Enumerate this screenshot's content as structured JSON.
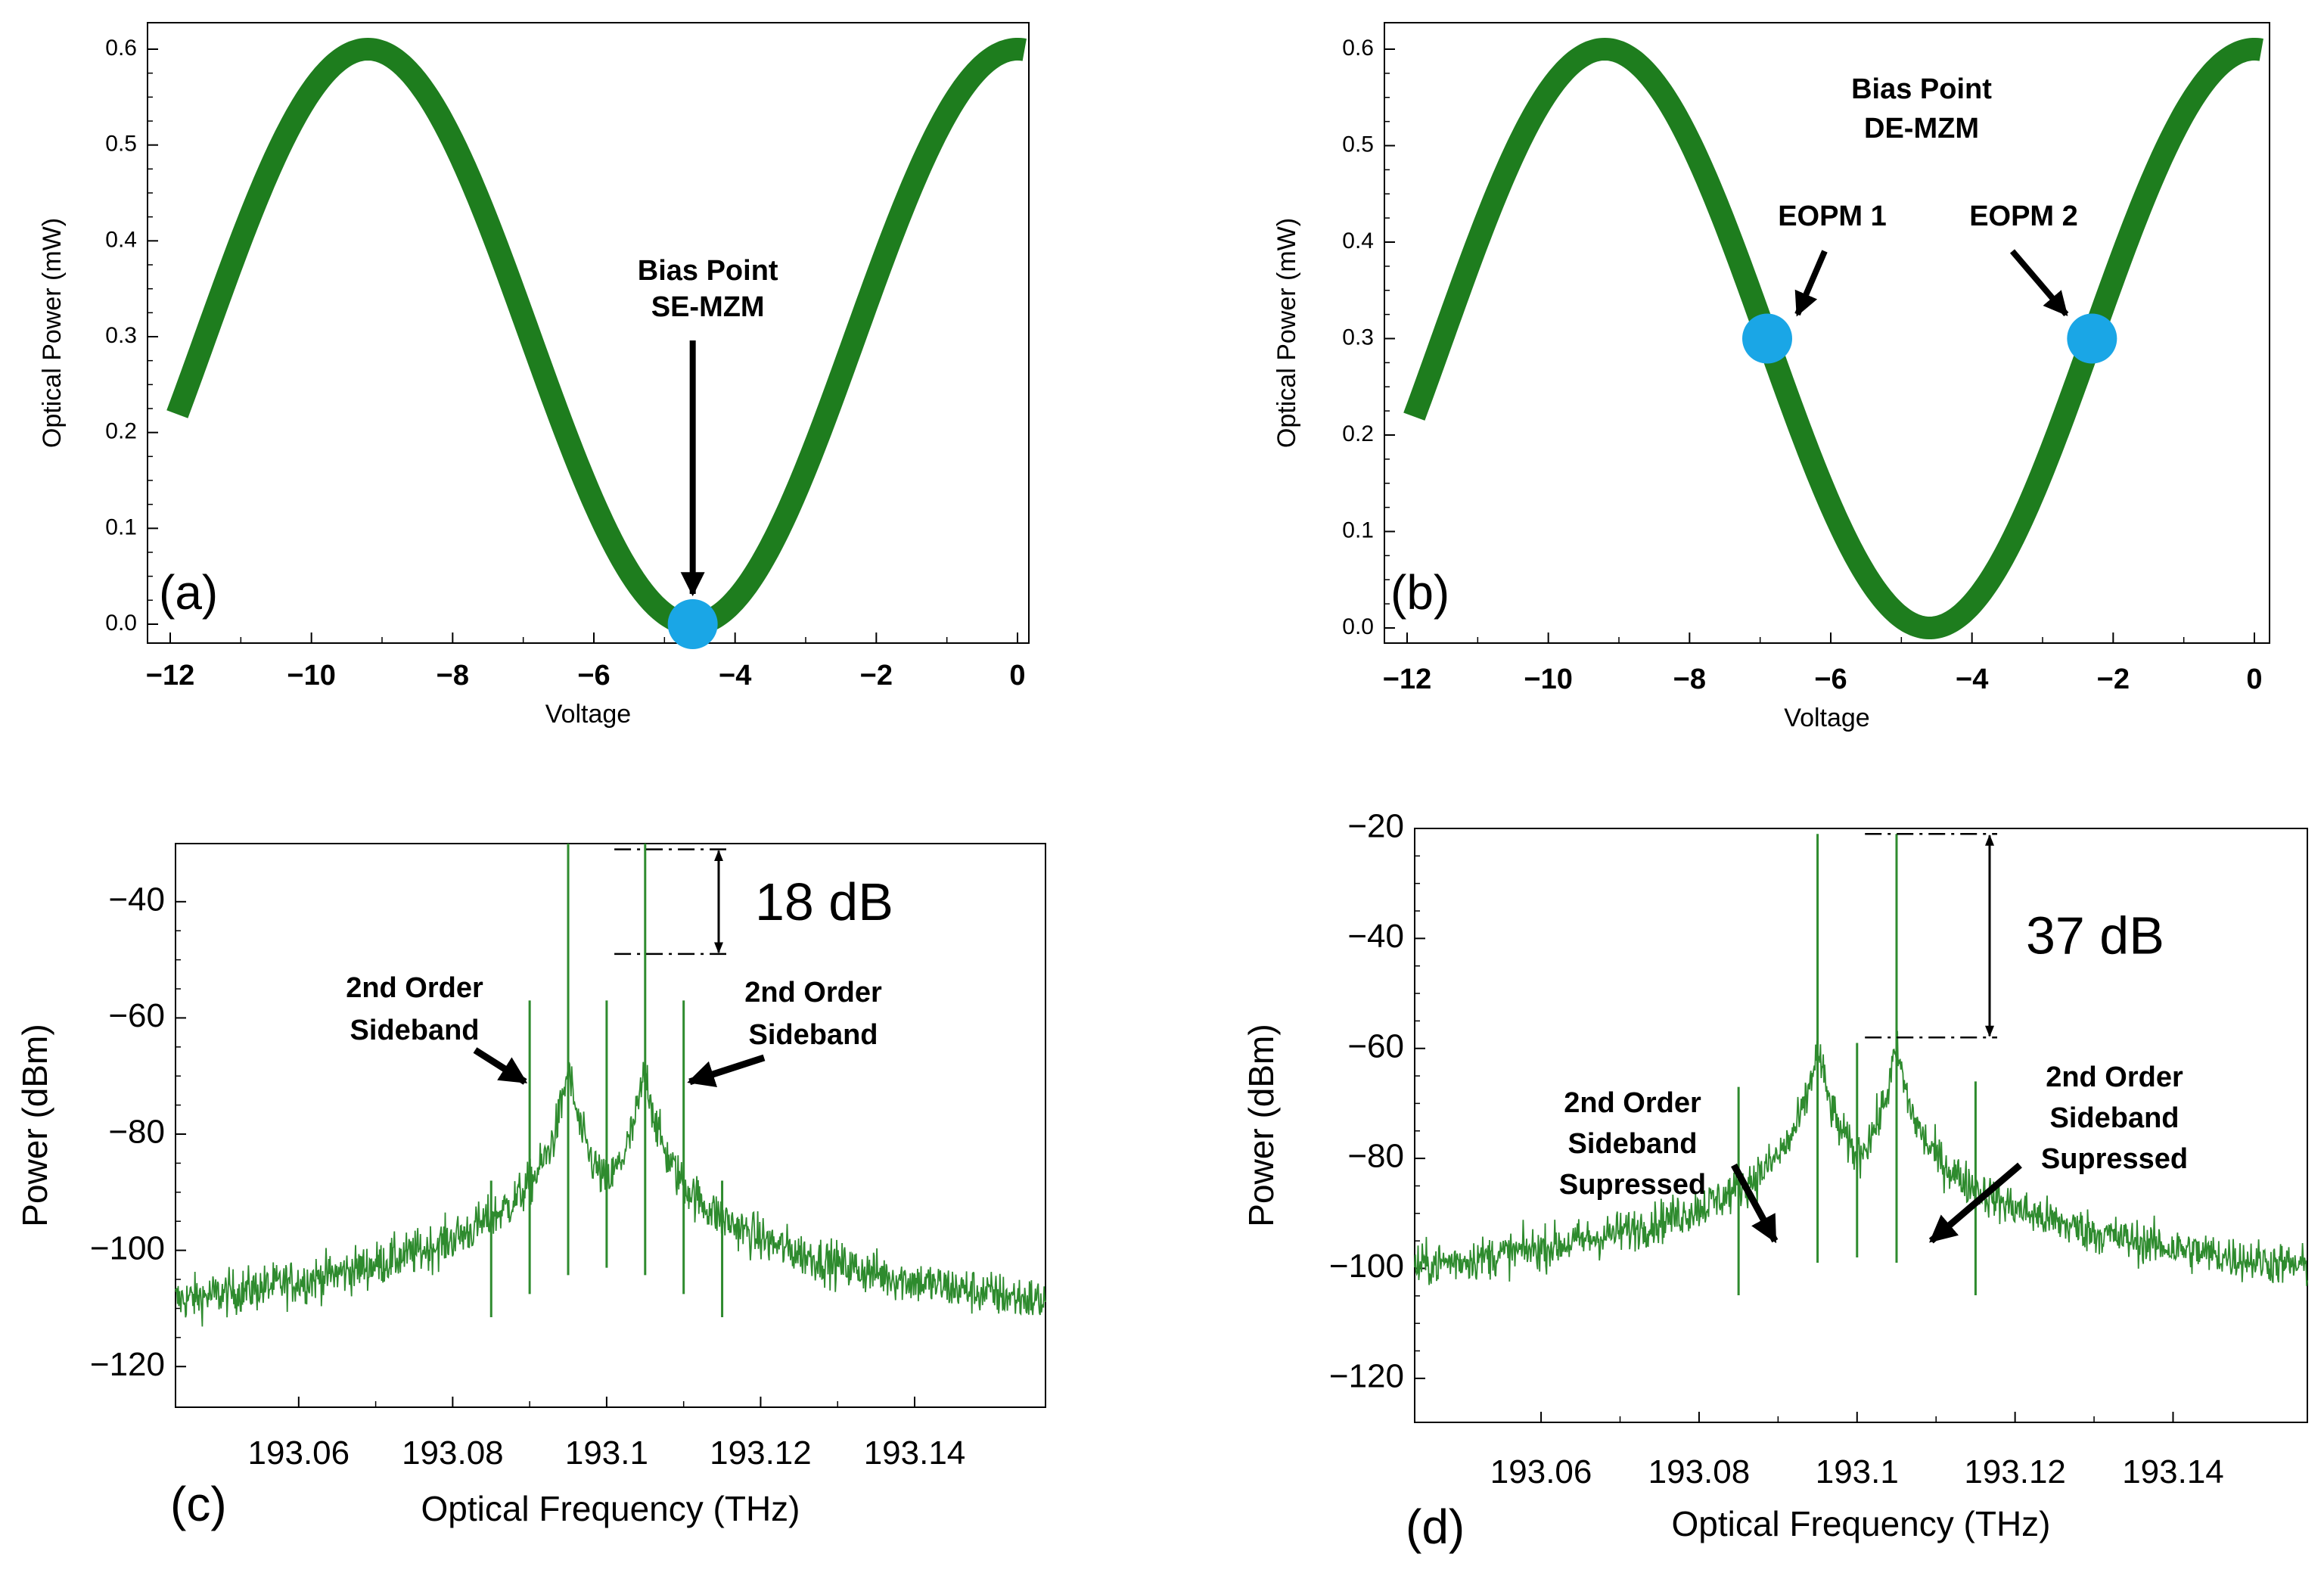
{
  "colors": {
    "curve": "#1e7d1e",
    "spectrum": "#2e8b2e",
    "marker": "#1aa6e6",
    "axis": "#000000"
  },
  "chart_data": [
    {
      "id": "a",
      "type": "line",
      "panel_label": "(a)",
      "xlabel": "Voltage",
      "ylabel": "Optical Power (mW)",
      "xlim": [
        -12,
        0
      ],
      "ylim": [
        0,
        0.6
      ],
      "xticks": [
        -12,
        -10,
        -8,
        -6,
        -4,
        -2,
        0
      ],
      "xtick_labels": [
        "−12",
        "−10",
        "−8",
        "−6",
        "−4",
        "−2",
        "0"
      ],
      "yticks": [
        0.0,
        0.1,
        0.2,
        0.3,
        0.4,
        0.5,
        0.6
      ],
      "ytick_labels": [
        "0.0",
        "0.1",
        "0.2",
        "0.3",
        "0.4",
        "0.5",
        "0.6"
      ],
      "curve": {
        "amplitude": 0.6,
        "vpi": 4.6,
        "null_voltage": -4.6,
        "x_start": -11.9,
        "x_end": 0.1
      },
      "markers": [
        {
          "x": -4.6,
          "y": 0.0
        }
      ],
      "annotations": [
        {
          "lines": [
            "Bias Point",
            "SE-MZM"
          ],
          "target": [
            -4.6,
            0.0
          ]
        }
      ]
    },
    {
      "id": "b",
      "type": "line",
      "panel_label": "(b)",
      "xlabel": "Voltage",
      "ylabel": "Optical Power (mW)",
      "xlim": [
        -12,
        0
      ],
      "ylim": [
        0,
        0.6
      ],
      "xticks": [
        -12,
        -10,
        -8,
        -6,
        -4,
        -2,
        0
      ],
      "xtick_labels": [
        "−12",
        "−10",
        "−8",
        "−6",
        "−4",
        "−2",
        "0"
      ],
      "yticks": [
        0.0,
        0.1,
        0.2,
        0.3,
        0.4,
        0.5,
        0.6
      ],
      "ytick_labels": [
        "0.0",
        "0.1",
        "0.2",
        "0.3",
        "0.4",
        "0.5",
        "0.6"
      ],
      "curve": {
        "amplitude": 0.6,
        "vpi": 4.6,
        "null_voltage": -4.6,
        "x_start": -11.9,
        "x_end": 0.1
      },
      "title_annotation": [
        "Bias Point",
        "DE-MZM"
      ],
      "markers": [
        {
          "x": -6.9,
          "y": 0.3
        },
        {
          "x": -2.3,
          "y": 0.3
        }
      ],
      "annotations": [
        {
          "lines": [
            "EOPM 1"
          ],
          "target": [
            -6.9,
            0.3
          ]
        },
        {
          "lines": [
            "EOPM 2"
          ],
          "target": [
            -2.3,
            0.3
          ]
        }
      ]
    },
    {
      "id": "c",
      "type": "line",
      "panel_label": "(c)",
      "xlabel": "Optical Frequency (THz)",
      "ylabel": "Power (dBm)",
      "xlim": [
        193.044,
        193.157
      ],
      "ylim": [
        -127,
        -30
      ],
      "xticks": [
        193.06,
        193.08,
        193.1,
        193.12,
        193.14
      ],
      "xtick_labels": [
        "193.06",
        "193.08",
        "193.1",
        "193.12",
        "193.14"
      ],
      "yticks": [
        -120,
        -100,
        -80,
        -60,
        -40
      ],
      "ytick_labels": [
        "−120",
        "−100",
        "−80",
        "−60",
        "−40"
      ],
      "noise_floor": {
        "base": -120,
        "center": 193.1,
        "bump": 17,
        "width": 0.018
      },
      "peaks": [
        {
          "f": 193.085,
          "p": -88
        },
        {
          "f": 193.09,
          "p": -57
        },
        {
          "f": 193.095,
          "p": -30
        },
        {
          "f": 193.1,
          "p": -57
        },
        {
          "f": 193.105,
          "p": -30
        },
        {
          "f": 193.11,
          "p": -57
        },
        {
          "f": 193.115,
          "p": -88
        }
      ],
      "difference_label": "18 dB",
      "difference_levels": [
        -31,
        -49
      ],
      "annotations": [
        {
          "lines": [
            "2nd Order",
            "Sideband"
          ],
          "target": [
            193.09,
            -71
          ]
        },
        {
          "lines": [
            "2nd Order",
            "Sideband"
          ],
          "target": [
            193.11,
            -71
          ]
        }
      ]
    },
    {
      "id": "d",
      "type": "line",
      "panel_label": "(d)",
      "xlabel": "Optical Frequency (THz)",
      "ylabel": "Power (dBm)",
      "xlim": [
        193.044,
        193.157
      ],
      "ylim": [
        -128,
        -20
      ],
      "xticks": [
        193.06,
        193.08,
        193.1,
        193.12,
        193.14
      ],
      "xtick_labels": [
        "193.06",
        "193.08",
        "193.1",
        "193.12",
        "193.14"
      ],
      "yticks": [
        -120,
        -100,
        -80,
        -60,
        -40,
        -20
      ],
      "ytick_labels": [
        "−120",
        "−100",
        "−80",
        "−60",
        "−40",
        "−20"
      ],
      "noise_floor": {
        "base": -114,
        "center": 193.1,
        "bump": 16,
        "width": 0.02
      },
      "peaks": [
        {
          "f": 193.085,
          "p": -67
        },
        {
          "f": 193.095,
          "p": -21
        },
        {
          "f": 193.1,
          "p": -59
        },
        {
          "f": 193.105,
          "p": -21
        },
        {
          "f": 193.115,
          "p": -66
        }
      ],
      "difference_label": "37 dB",
      "difference_levels": [
        -21,
        -58
      ],
      "annotations": [
        {
          "lines": [
            "2nd Order",
            "Sideband",
            "Supressed"
          ],
          "target": [
            193.09,
            -95
          ]
        },
        {
          "lines": [
            "2nd Order",
            "Sideband",
            "Supressed"
          ],
          "target": [
            193.109,
            -95
          ]
        }
      ]
    }
  ]
}
